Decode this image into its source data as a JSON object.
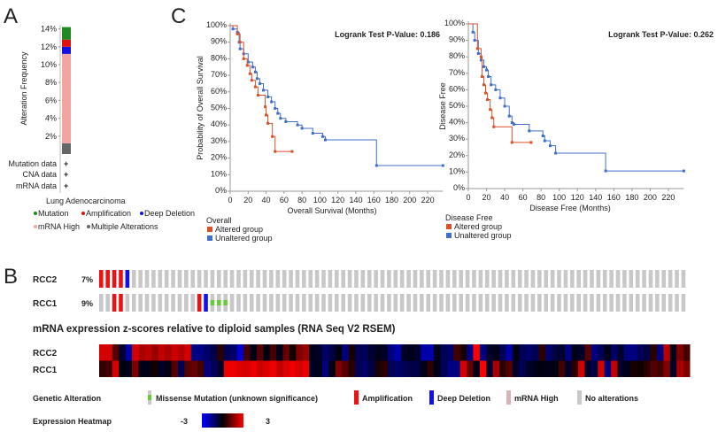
{
  "panels": {
    "a": "A",
    "b": "B",
    "c": "C"
  },
  "chart_data": [
    {
      "type": "bar",
      "panel": "A",
      "ylabel": "Alteration Frequency",
      "categories": [
        "Lung Adenocarcinoma"
      ],
      "ytick_labels": [
        "2%",
        "4%",
        "6%",
        "8%",
        "10%",
        "12%",
        "14%"
      ],
      "ylim": [
        0,
        14.5
      ],
      "series": [
        {
          "name": "Multiple Alterations",
          "values": [
            1.2
          ],
          "color": "#666666"
        },
        {
          "name": "mRNA High",
          "values": [
            10.0
          ],
          "color": "#f4a3a3"
        },
        {
          "name": "Deep Deletion",
          "values": [
            0.8
          ],
          "color": "#1010e0"
        },
        {
          "name": "Amplification",
          "values": [
            0.8
          ],
          "color": "#e01010"
        },
        {
          "name": "Mutation",
          "values": [
            1.4
          ],
          "color": "#1f8a1f"
        }
      ],
      "data_rows": [
        "Mutation data",
        "CNA data",
        "mRNA data"
      ],
      "data_mark": "+",
      "legend": [
        {
          "label": "Mutation",
          "color": "#1f8a1f"
        },
        {
          "label": "Amplification",
          "color": "#e01010"
        },
        {
          "label": "Deep Deletion",
          "color": "#1010e0"
        },
        {
          "label": "mRNA High",
          "color": "#f4a3a3"
        },
        {
          "label": "Multiple Alterations",
          "color": "#666666"
        }
      ]
    },
    {
      "type": "line",
      "panel": "C-left",
      "annotation": "Logrank Test P-Value: 0.186",
      "xlabel": "Overall Survival (Months)",
      "ylabel": "Probability of Overall Survival",
      "xlim": [
        0,
        237
      ],
      "ylim": [
        0,
        100
      ],
      "xticks": [
        0,
        20,
        40,
        60,
        80,
        100,
        120,
        140,
        160,
        180,
        200,
        220
      ],
      "yticks": [
        "0%",
        "10%",
        "20%",
        "30%",
        "40%",
        "50%",
        "60%",
        "70%",
        "80%",
        "90%",
        "100%"
      ],
      "legend_title": "Overall",
      "series": [
        {
          "name": "Altered group",
          "color": "#d9502a",
          "steps": [
            [
              0,
              100
            ],
            [
              8,
              95
            ],
            [
              11,
              90
            ],
            [
              15,
              80
            ],
            [
              19,
              76
            ],
            [
              22,
              71
            ],
            [
              24,
              67
            ],
            [
              28,
              63
            ],
            [
              31,
              58
            ],
            [
              39,
              51
            ],
            [
              40,
              46
            ],
            [
              42,
              41
            ],
            [
              47,
              33
            ],
            [
              50,
              24
            ],
            [
              69,
              24
            ]
          ]
        },
        {
          "name": "Unaltered group",
          "color": "#3f6fc6",
          "steps": [
            [
              0,
              100
            ],
            [
              3,
              98
            ],
            [
              8,
              96
            ],
            [
              10,
              90
            ],
            [
              11,
              86
            ],
            [
              15,
              83
            ],
            [
              20,
              78
            ],
            [
              25,
              75
            ],
            [
              28,
              72
            ],
            [
              30,
              68
            ],
            [
              33,
              65
            ],
            [
              37,
              61
            ],
            [
              42,
              57
            ],
            [
              46,
              54
            ],
            [
              50,
              50
            ],
            [
              53,
              47
            ],
            [
              56,
              44
            ],
            [
              62,
              42
            ],
            [
              75,
              40
            ],
            [
              80,
              38
            ],
            [
              92,
              35
            ],
            [
              103,
              33
            ],
            [
              106,
              31
            ],
            [
              163,
              15.5
            ],
            [
              237,
              15.5
            ]
          ]
        }
      ]
    },
    {
      "type": "line",
      "panel": "C-right",
      "annotation": "Logrank Test P-Value: 0.262",
      "xlabel": "Disease Free (Months)",
      "ylabel": "Disease Free",
      "xlim": [
        0,
        237
      ],
      "ylim": [
        0,
        100
      ],
      "xticks": [
        0,
        20,
        40,
        60,
        80,
        100,
        120,
        140,
        160,
        180,
        200,
        220
      ],
      "yticks": [
        "0%",
        "10%",
        "20%",
        "30%",
        "40%",
        "50%",
        "60%",
        "70%",
        "80%",
        "90%",
        "100%"
      ],
      "legend_title": "Disease Free",
      "series": [
        {
          "name": "Altered group",
          "color": "#d9502a",
          "steps": [
            [
              0,
              100
            ],
            [
              10,
              85
            ],
            [
              14,
              80
            ],
            [
              15,
              68
            ],
            [
              17,
              63
            ],
            [
              19,
              58
            ],
            [
              21,
              54
            ],
            [
              24,
              48
            ],
            [
              26,
              43
            ],
            [
              28,
              37.5
            ],
            [
              48,
              28
            ],
            [
              69,
              28
            ]
          ]
        },
        {
          "name": "Unaltered group",
          "color": "#3f6fc6",
          "steps": [
            [
              0,
              100
            ],
            [
              5,
              95
            ],
            [
              7,
              90
            ],
            [
              11,
              82
            ],
            [
              14,
              78
            ],
            [
              17,
              74
            ],
            [
              20,
              72
            ],
            [
              22,
              68
            ],
            [
              25,
              63
            ],
            [
              30,
              60
            ],
            [
              35,
              55
            ],
            [
              40,
              50
            ],
            [
              45,
              44
            ],
            [
              48,
              40
            ],
            [
              50,
              39
            ],
            [
              67,
              35
            ],
            [
              82,
              32
            ],
            [
              84,
              29
            ],
            [
              90,
              26
            ],
            [
              96,
              21.5
            ],
            [
              151,
              10.7
            ],
            [
              237,
              10.7
            ]
          ]
        }
      ]
    },
    {
      "type": "heatmap",
      "panel": "B",
      "oncoprint": {
        "columns": 90,
        "rows": [
          {
            "gene": "RCC2",
            "percent": "7%",
            "alterations": {
              "0": "amp",
              "1": "amp",
              "2": "amp",
              "3": "amp",
              "4": "del"
            }
          },
          {
            "gene": "RCC1",
            "percent": "9%",
            "alterations": {
              "2": "amp",
              "3": "amp",
              "15": "amp",
              "16": "del",
              "17": "mut",
              "18": "mut",
              "19": "mut"
            }
          }
        ]
      },
      "title": "mRNA expression z-scores relative to diploid samples (RNA Seq V2 RSEM)",
      "zlim": [
        -3,
        3
      ],
      "rows": [
        {
          "gene": "RCC2",
          "values": [
            2.5,
            2.5,
            1,
            -0.5,
            -2,
            2.5,
            2,
            2.2,
            1.8,
            2.3,
            2,
            2.4,
            2.1,
            2.5,
            -1.5,
            -1.5,
            -1.2,
            -0.8,
            0.5,
            -1,
            -1.2,
            -2.5,
            0.8,
            -0.3,
            1,
            -0.2,
            0.8,
            -0.3,
            1.2,
            0.2,
            1.5,
            1.8,
            -0.3,
            -0.5,
            -1.2,
            -0.8,
            -0.2,
            -1.5,
            0.3,
            -1,
            -1,
            -0.6,
            -0.3,
            -0.5,
            -1.5,
            -2,
            -0.5,
            -0.3,
            -0.5,
            -2,
            -2,
            -0.3,
            -1,
            -1.2,
            0.8,
            0.3,
            -1.5,
            3,
            -1.5,
            -0.5,
            -0.3,
            -1,
            -2,
            -0.2,
            -1,
            -1.2,
            -1,
            0.5,
            -1.2,
            -0.8,
            -0.5,
            -1.5,
            -0.3,
            -0.5,
            1,
            -1.5,
            -1,
            -0.3,
            -1.2,
            -0.5,
            -1.5,
            -1.5,
            -1,
            -0.8,
            0.5,
            -1.5,
            2.2,
            -0.3,
            1.5,
            0.8
          ]
        },
        {
          "gene": "RCC1",
          "values": [
            0.6,
            0.8,
            2.5,
            -0.2,
            -0.3,
            1.5,
            -0.3,
            -0.3,
            0.2,
            -0.5,
            -0.2,
            1,
            -1,
            1,
            1.2,
            0.8,
            -1.5,
            -1,
            -0.5,
            2.8,
            2.8,
            2.6,
            2.5,
            2.8,
            2.4,
            2.6,
            2.8,
            2.3,
            2.6,
            2.8,
            2.5,
            2.8,
            -0.5,
            -0.3,
            -1.5,
            -0.2,
            1.5,
            1,
            0.5,
            -1,
            -1.2,
            -0.8,
            0.3,
            0.5,
            -1,
            -1.2,
            -1,
            -0.8,
            -0.8,
            -0.3,
            0.5,
            -0.3,
            -1,
            -1.5,
            -1.5,
            2.5,
            1.2,
            -0.3,
            3,
            -0.5,
            2,
            0.5,
            1,
            -0.5,
            -1,
            -0.5,
            -0.3,
            -0.2,
            -0.3,
            -0.2,
            0.8,
            -0.5,
            0.5,
            2.5,
            -0.5,
            -0.8,
            2.5,
            -1.5,
            2.3,
            -0.5,
            -0.3,
            0.3,
            0.2,
            0.5,
            1,
            0.8,
            1.5,
            -0.5,
            2,
            1.5
          ]
        }
      ],
      "legend": {
        "genetic_alteration_label": "Genetic Alteration",
        "items": [
          {
            "key": "mut",
            "label": "Missense Mutation (unknown significance)",
            "color": "#66cc33"
          },
          {
            "key": "amp",
            "label": "Amplification",
            "color": "#ee1111"
          },
          {
            "key": "del",
            "label": "Deep Deletion",
            "color": "#1111ee"
          },
          {
            "key": "high",
            "label": "mRNA High",
            "color": "#d4b4b4"
          },
          {
            "key": "none",
            "label": "No alterations",
            "color": "#c8c8c8"
          }
        ],
        "expression_heatmap_label": "Expression Heatmap",
        "min_label": "-3",
        "max_label": "3"
      }
    }
  ]
}
